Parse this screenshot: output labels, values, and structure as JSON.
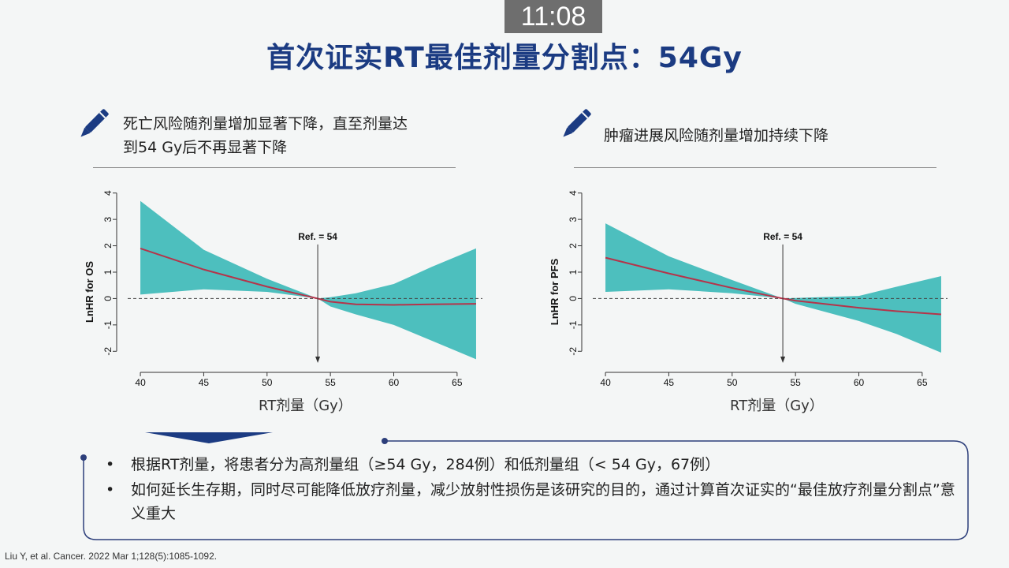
{
  "timer": "11:08",
  "title": "首次证实RT最佳剂量分割点：54Gy",
  "left_panel": {
    "note_line1": "死亡风险随剂量增加显著下降，直至剂量达",
    "note_line2": "到54 Gy后不再显著下降",
    "x_caption": "RT剂量（Gy）"
  },
  "right_panel": {
    "note_line1": "肿瘤进展风险随剂量增加持续下降",
    "x_caption": "RT剂量（Gy）"
  },
  "bullets": [
    "根据RT剂量，将患者分为高剂量组（≥54 Gy，284例）和低剂量组（< 54 Gy，67例）",
    "如何延长生存期，同时尽可能降低放疗剂量，减少放射性损伤是该研究的目的，通过计算首次证实的“最佳放疗剂量分割点”意义重大"
  ],
  "bullet_symbol": "•",
  "citation": "Liu Y, et al. Cancer. 2022 Mar 1;128(5):1085-1092.",
  "colors": {
    "title": "#1b3b82",
    "band": "#4dbfbe",
    "curve": "#b5344a",
    "bracket": "#2c3e7a"
  },
  "chart_data": [
    {
      "type": "line",
      "ylabel": "LnHR for OS",
      "xticks": [
        40,
        45,
        50,
        55,
        60,
        65
      ],
      "yticks": [
        -2,
        -1,
        0,
        1,
        2,
        3,
        4
      ],
      "xlim": [
        39,
        67
      ],
      "ylim": [
        -2.5,
        4.2
      ],
      "ref_value": 54,
      "ref_label": "Ref. = 54",
      "x": [
        40,
        45,
        50,
        54,
        55,
        57,
        60,
        63,
        66.5
      ],
      "estimate": [
        1.9,
        1.1,
        0.45,
        0.0,
        -0.12,
        -0.22,
        -0.24,
        -0.22,
        -0.2
      ],
      "lower": [
        0.15,
        0.35,
        0.25,
        0.0,
        -0.3,
        -0.6,
        -1.0,
        -1.6,
        -2.3
      ],
      "upper": [
        3.7,
        1.85,
        0.75,
        0.0,
        0.05,
        0.2,
        0.55,
        1.2,
        1.9
      ]
    },
    {
      "type": "line",
      "ylabel": "LnHR for PFS",
      "xticks": [
        40,
        45,
        50,
        55,
        60,
        65
      ],
      "yticks": [
        -2,
        -1,
        0,
        1,
        2,
        3,
        4
      ],
      "xlim": [
        39,
        67
      ],
      "ylim": [
        -2.5,
        4.2
      ],
      "ref_value": 54,
      "ref_label": "Ref. = 54",
      "x": [
        40,
        45,
        50,
        54,
        55,
        60,
        63,
        66.5
      ],
      "estimate": [
        1.55,
        0.95,
        0.4,
        0.0,
        -0.08,
        -0.35,
        -0.48,
        -0.6
      ],
      "lower": [
        0.25,
        0.35,
        0.2,
        0.0,
        -0.2,
        -0.85,
        -1.35,
        -2.05
      ],
      "upper": [
        2.85,
        1.6,
        0.7,
        0.0,
        0.02,
        0.1,
        0.45,
        0.85
      ]
    }
  ]
}
